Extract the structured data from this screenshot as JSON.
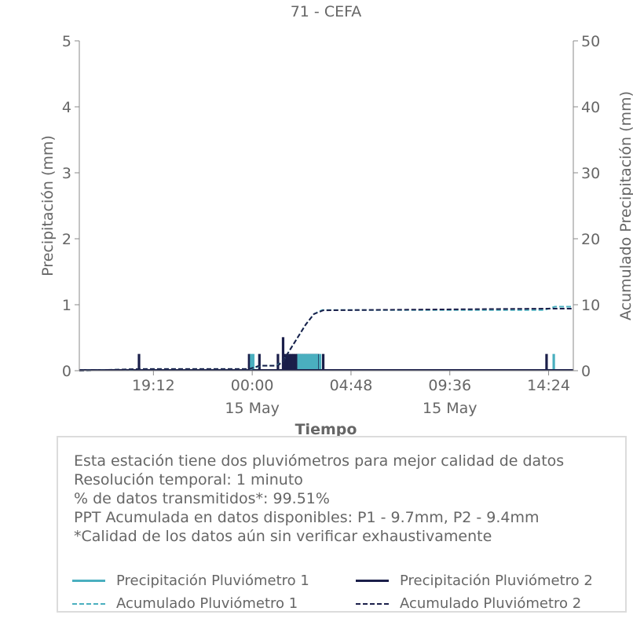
{
  "chart_data": {
    "type": "bar",
    "title": "71 - CEFA",
    "xlabel": "Tiempo",
    "ylabel_left": "Precipitación (mm)",
    "ylabel_right": "Acumulado Precipitación (mm)",
    "ylim_left": [
      0,
      5
    ],
    "ylim_right": [
      0,
      50
    ],
    "yticks_left": [
      "0",
      "1",
      "2",
      "3",
      "4",
      "5"
    ],
    "yticks_right": [
      "0",
      "10",
      "20",
      "30",
      "40",
      "50"
    ],
    "xlim_hours": [
      15.6,
      39.6
    ],
    "xticks": [
      {
        "hour": 19.2,
        "label": "19:12",
        "sublabel": ""
      },
      {
        "hour": 24.0,
        "label": "00:00",
        "sublabel": "15 May"
      },
      {
        "hour": 28.8,
        "label": "04:48",
        "sublabel": ""
      },
      {
        "hour": 33.6,
        "label": "09:36",
        "sublabel": "15 May"
      },
      {
        "hour": 38.4,
        "label": "14:24",
        "sublabel": ""
      }
    ],
    "grid": false,
    "series": [
      {
        "name": "Precipitación Pluviómetro 1",
        "kind": "bar",
        "axis": "left",
        "color": "#4aafbf",
        "x": [
          23.95,
          24.05,
          26.25,
          26.35,
          26.45,
          26.55,
          26.65,
          26.75,
          26.85,
          26.95,
          27.05,
          27.15,
          27.3,
          38.65
        ],
        "values": [
          0.254,
          0.254,
          0.254,
          0.254,
          0.254,
          0.254,
          0.254,
          0.254,
          0.254,
          0.254,
          0.254,
          0.254,
          0.254,
          0.254
        ]
      },
      {
        "name": "Precipitación Pluviómetro 2",
        "kind": "bar",
        "axis": "left",
        "color": "#1b1f4a",
        "x": [
          18.5,
          23.85,
          24.35,
          25.25,
          25.5,
          25.6,
          25.7,
          25.8,
          25.9,
          26.0,
          26.1,
          26.2,
          26.3,
          26.4,
          26.5,
          26.6,
          26.7,
          26.8,
          26.9,
          27.0,
          27.1,
          27.2,
          27.45,
          38.3
        ],
        "values": [
          0.254,
          0.254,
          0.254,
          0.254,
          0.508,
          0.254,
          0.254,
          0.254,
          0.254,
          0.254,
          0.254,
          0.254,
          0.254,
          0.254,
          0.254,
          0.254,
          0.254,
          0.254,
          0.254,
          0.254,
          0.254,
          0.254,
          0.254,
          0.254
        ]
      },
      {
        "name": "Acumulado Pluviómetro 1",
        "kind": "line",
        "axis": "right",
        "color": "#4aafbf",
        "x": [
          15.6,
          18.5,
          23.95,
          24.4,
          25.2,
          25.5,
          26.0,
          26.6,
          27.0,
          27.4,
          38.2,
          38.7,
          39.6
        ],
        "values": [
          0,
          0.25,
          0.25,
          0.76,
          0.76,
          1.5,
          4.0,
          7.0,
          8.6,
          9.2,
          9.2,
          9.7,
          9.7
        ]
      },
      {
        "name": "Acumulado Pluviómetro 2",
        "kind": "line",
        "axis": "right",
        "color": "#1b1f4a",
        "x": [
          15.6,
          18.5,
          23.85,
          24.35,
          25.25,
          25.5,
          26.0,
          26.6,
          27.0,
          27.45,
          38.3,
          39.6
        ],
        "values": [
          0,
          0.25,
          0.25,
          0.76,
          0.76,
          1.5,
          4.0,
          7.0,
          8.6,
          9.15,
          9.4,
          9.4
        ]
      }
    ]
  },
  "info": {
    "lines": [
      "Esta estación tiene dos pluviómetros para mejor calidad de datos",
      "Resolución temporal: 1 minuto",
      "% de datos transmitidos*: 99.51%",
      "PPT Acumulada en datos disponibles: P1 - 9.7mm, P2 - 9.4mm",
      "*Calidad de los datos aún sin verificar exhaustivamente"
    ]
  },
  "legend": {
    "items": [
      {
        "label": "Precipitación Pluviómetro 1",
        "color": "#4aafbf",
        "style": "solid"
      },
      {
        "label": "Precipitación Pluviómetro 2",
        "color": "#1b1f4a",
        "style": "solid"
      },
      {
        "label": "Acumulado Pluviómetro 1",
        "color": "#4aafbf",
        "style": "dashed"
      },
      {
        "label": "Acumulado Pluviómetro 2",
        "color": "#1b1f4a",
        "style": "dashed"
      }
    ]
  }
}
